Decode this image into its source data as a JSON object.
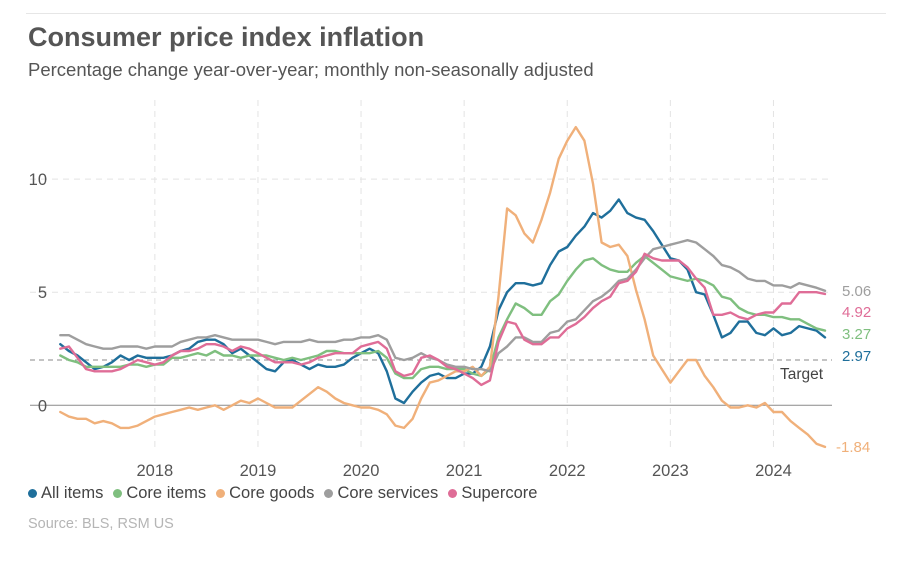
{
  "header": {
    "title": "Consumer price index inflation",
    "subtitle": "Percentage change year-over-year; monthly non-seasonally adjusted"
  },
  "source": "Source: BLS, RSM US",
  "chart_data": {
    "type": "line",
    "title": "Consumer price index inflation",
    "subtitle": "Percentage change year-over-year; monthly non-seasonally adjusted",
    "xlabel": "",
    "ylabel": "",
    "x_start": "2017-02",
    "x_end": "2024-06",
    "xlim": [
      2017.08,
      2024.5
    ],
    "ylim": [
      -2.2,
      13.5
    ],
    "x_ticks": [
      {
        "value": 2018,
        "label": "2018"
      },
      {
        "value": 2019,
        "label": "2019"
      },
      {
        "value": 2020,
        "label": "2020"
      },
      {
        "value": 2021,
        "label": "2021"
      },
      {
        "value": 2022,
        "label": "2022"
      },
      {
        "value": 2023,
        "label": "2023"
      },
      {
        "value": 2024,
        "label": "2024"
      }
    ],
    "y_ticks": [
      {
        "value": 0,
        "label": "0"
      },
      {
        "value": 5,
        "label": "5"
      },
      {
        "value": 10,
        "label": "10"
      }
    ],
    "grid": true,
    "target": {
      "value": 2,
      "label": "Target"
    },
    "legend_position": "bottom",
    "series": [
      {
        "name": "All items",
        "color": "#1f6f9b",
        "end_label": "2.97",
        "values": [
          2.7,
          2.4,
          2.2,
          1.9,
          1.6,
          1.7,
          1.9,
          2.2,
          2.0,
          2.2,
          2.1,
          2.1,
          2.1,
          2.2,
          2.4,
          2.5,
          2.8,
          2.9,
          2.9,
          2.7,
          2.3,
          2.5,
          2.2,
          1.9,
          1.6,
          1.5,
          1.9,
          2.0,
          1.8,
          1.6,
          1.8,
          1.7,
          1.7,
          1.8,
          2.1,
          2.3,
          2.5,
          2.3,
          1.5,
          0.3,
          0.1,
          0.6,
          1.0,
          1.3,
          1.4,
          1.2,
          1.2,
          1.4,
          1.4,
          1.7,
          2.6,
          4.2,
          5.0,
          5.4,
          5.4,
          5.3,
          5.4,
          6.2,
          6.8,
          7.0,
          7.5,
          7.9,
          8.5,
          8.3,
          8.6,
          9.1,
          8.5,
          8.3,
          8.2,
          7.7,
          7.1,
          6.5,
          6.4,
          6.0,
          5.0,
          4.9,
          4.0,
          3.0,
          3.2,
          3.7,
          3.7,
          3.2,
          3.1,
          3.4,
          3.1,
          3.2,
          3.5,
          3.4,
          3.3,
          3.0
        ]
      },
      {
        "name": "Core items",
        "color": "#7fbf7f",
        "end_label": "3.27",
        "values": [
          2.2,
          2.0,
          1.9,
          1.7,
          1.7,
          1.7,
          1.7,
          1.7,
          1.8,
          1.8,
          1.7,
          1.8,
          1.8,
          2.1,
          2.1,
          2.2,
          2.3,
          2.2,
          2.4,
          2.2,
          2.2,
          2.1,
          2.2,
          2.2,
          2.2,
          2.1,
          2.0,
          2.1,
          2.0,
          2.1,
          2.2,
          2.4,
          2.4,
          2.3,
          2.3,
          2.3,
          2.3,
          2.4,
          2.1,
          1.4,
          1.2,
          1.2,
          1.6,
          1.7,
          1.7,
          1.6,
          1.6,
          1.6,
          1.4,
          1.3,
          1.6,
          3.0,
          3.8,
          4.5,
          4.3,
          4.0,
          4.0,
          4.6,
          4.9,
          5.5,
          6.0,
          6.4,
          6.5,
          6.2,
          6.0,
          5.9,
          5.9,
          6.3,
          6.6,
          6.3,
          6.0,
          5.7,
          5.6,
          5.5,
          5.6,
          5.5,
          5.3,
          4.8,
          4.7,
          4.3,
          4.1,
          4.0,
          4.0,
          3.9,
          3.9,
          3.8,
          3.8,
          3.6,
          3.4,
          3.3
        ]
      },
      {
        "name": "Core goods",
        "color": "#f0b07a",
        "end_label": "-1.84",
        "values": [
          -0.3,
          -0.5,
          -0.6,
          -0.6,
          -0.8,
          -0.7,
          -0.8,
          -1.0,
          -1.0,
          -0.9,
          -0.7,
          -0.5,
          -0.4,
          -0.3,
          -0.2,
          -0.1,
          -0.2,
          -0.1,
          0.0,
          -0.2,
          0.0,
          0.2,
          0.1,
          0.3,
          0.1,
          -0.1,
          -0.1,
          -0.1,
          0.2,
          0.5,
          0.8,
          0.6,
          0.3,
          0.1,
          0.0,
          -0.1,
          -0.1,
          -0.2,
          -0.4,
          -0.9,
          -1.0,
          -0.6,
          0.3,
          1.0,
          1.1,
          1.3,
          1.5,
          1.5,
          1.7,
          1.3,
          1.7,
          4.8,
          8.7,
          8.4,
          7.6,
          7.2,
          8.2,
          9.4,
          10.9,
          11.7,
          12.3,
          11.7,
          9.8,
          7.2,
          7.0,
          7.1,
          6.6,
          5.1,
          3.8,
          2.2,
          1.6,
          1.0,
          1.5,
          2.0,
          2.0,
          1.3,
          0.8,
          0.2,
          -0.1,
          -0.1,
          0.0,
          -0.1,
          0.1,
          -0.3,
          -0.3,
          -0.7,
          -1.0,
          -1.3,
          -1.7,
          -1.84
        ]
      },
      {
        "name": "Core services",
        "color": "#9e9e9e",
        "end_label": "5.06",
        "values": [
          3.1,
          3.1,
          2.9,
          2.7,
          2.6,
          2.5,
          2.5,
          2.6,
          2.6,
          2.6,
          2.5,
          2.6,
          2.6,
          2.6,
          2.8,
          2.9,
          3.0,
          3.0,
          3.1,
          3.0,
          2.9,
          2.9,
          2.9,
          2.9,
          2.8,
          2.7,
          2.8,
          2.8,
          2.8,
          2.9,
          2.8,
          2.8,
          2.8,
          2.9,
          2.9,
          3.0,
          3.0,
          3.1,
          2.9,
          2.1,
          2.0,
          2.1,
          2.3,
          2.1,
          2.0,
          1.8,
          1.7,
          1.7,
          1.6,
          1.6,
          1.5,
          2.3,
          2.6,
          3.0,
          3.0,
          2.8,
          2.8,
          3.2,
          3.3,
          3.7,
          3.8,
          4.2,
          4.6,
          4.8,
          5.1,
          5.5,
          5.6,
          6.0,
          6.5,
          6.9,
          7.0,
          7.1,
          7.2,
          7.3,
          7.2,
          6.9,
          6.6,
          6.2,
          6.1,
          5.9,
          5.6,
          5.5,
          5.5,
          5.3,
          5.3,
          5.2,
          5.4,
          5.3,
          5.2,
          5.06
        ]
      },
      {
        "name": "Supercore",
        "color": "#df6d97",
        "end_label": "4.92",
        "values": [
          2.5,
          2.6,
          2.1,
          1.6,
          1.5,
          1.5,
          1.5,
          1.6,
          1.8,
          2.0,
          1.9,
          1.8,
          1.9,
          2.2,
          2.4,
          2.4,
          2.5,
          2.7,
          2.7,
          2.6,
          2.4,
          2.6,
          2.5,
          2.3,
          2.1,
          1.9,
          1.9,
          1.9,
          1.8,
          1.9,
          2.1,
          2.2,
          2.3,
          2.3,
          2.3,
          2.6,
          2.7,
          2.8,
          2.5,
          1.5,
          1.3,
          1.4,
          2.1,
          2.2,
          2.0,
          1.7,
          1.6,
          1.4,
          1.2,
          0.9,
          1.1,
          2.8,
          3.7,
          3.6,
          2.9,
          2.7,
          2.7,
          3.0,
          3.0,
          3.4,
          3.6,
          3.9,
          4.3,
          4.6,
          4.8,
          5.4,
          5.5,
          5.9,
          6.7,
          6.5,
          6.4,
          6.4,
          6.4,
          6.1,
          5.6,
          5.2,
          4.0,
          4.0,
          4.1,
          3.9,
          3.8,
          4.0,
          4.1,
          4.1,
          4.5,
          4.5,
          5.0,
          5.0,
          5.0,
          4.92
        ]
      }
    ]
  }
}
